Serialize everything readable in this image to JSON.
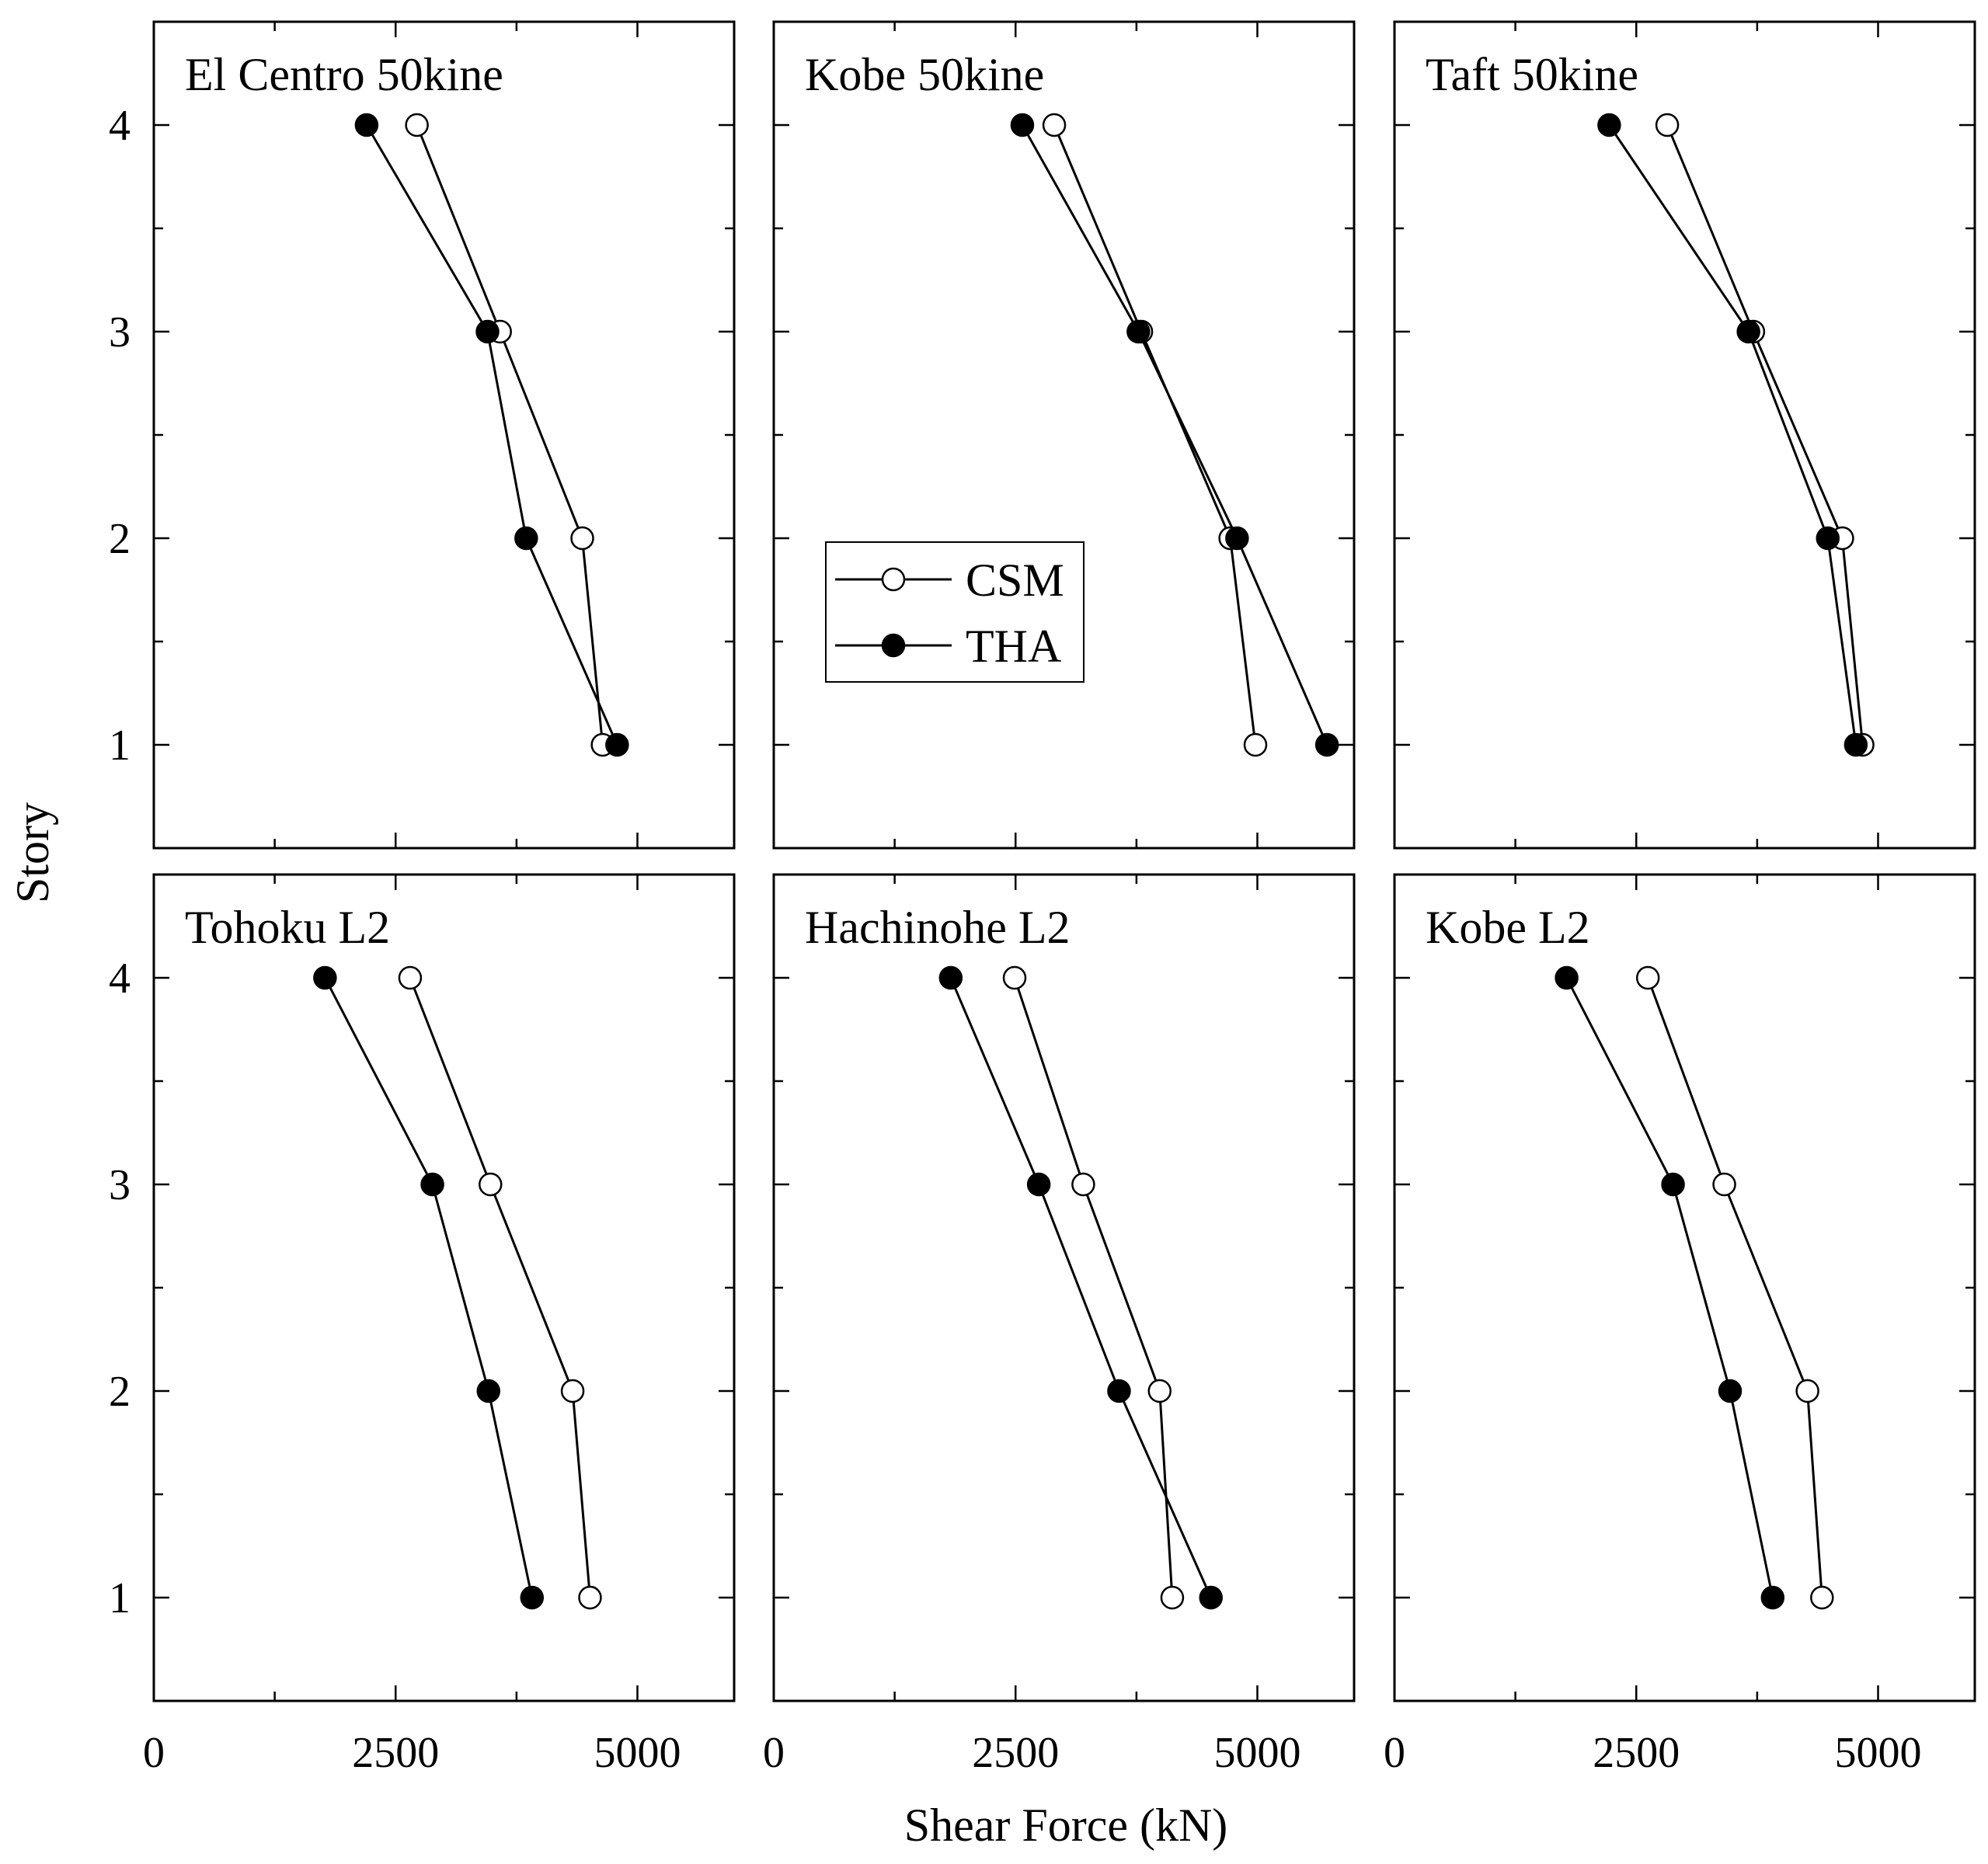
{
  "chart_data": {
    "type": "line",
    "xlabel": "Shear Force (kN)",
    "ylabel": "Story",
    "xlim": [
      0,
      6000
    ],
    "ylim": [
      0.5,
      4.5
    ],
    "x_ticks": [
      0,
      2500,
      5000
    ],
    "y_ticks": [
      1,
      2,
      3,
      4
    ],
    "grid": false,
    "legend": {
      "placement": "inside Kobe 50kine panel, center-left",
      "entries": [
        {
          "name": "CSM",
          "marker": "open-circle"
        },
        {
          "name": "THA",
          "marker": "filled-circle"
        }
      ]
    },
    "layout": "2 rows x 3 columns, shared axes",
    "panels": [
      {
        "title": "El Centro 50kine",
        "series": [
          {
            "name": "CSM",
            "x": [
              4640,
              4430,
              3580,
              2720
            ],
            "y": [
              1,
              2,
              3,
              4
            ]
          },
          {
            "name": "THA",
            "x": [
              4790,
              3850,
              3450,
              2200
            ],
            "y": [
              1,
              2,
              3,
              4
            ]
          }
        ]
      },
      {
        "title": "Kobe 50kine",
        "series": [
          {
            "name": "CSM",
            "x": [
              4980,
              4720,
              3800,
              2900
            ],
            "y": [
              1,
              2,
              3,
              4
            ]
          },
          {
            "name": "THA",
            "x": [
              5720,
              4790,
              3770,
              2570
            ],
            "y": [
              1,
              2,
              3,
              4
            ]
          }
        ]
      },
      {
        "title": "Taft 50kine",
        "series": [
          {
            "name": "CSM",
            "x": [
              4840,
              4630,
              3710,
              2820
            ],
            "y": [
              1,
              2,
              3,
              4
            ]
          },
          {
            "name": "THA",
            "x": [
              4770,
              4480,
              3660,
              2220
            ],
            "y": [
              1,
              2,
              3,
              4
            ]
          }
        ]
      },
      {
        "title": "Tohoku L2",
        "series": [
          {
            "name": "CSM",
            "x": [
              4510,
              4330,
              3480,
              2650
            ],
            "y": [
              1,
              2,
              3,
              4
            ]
          },
          {
            "name": "THA",
            "x": [
              3910,
              3460,
              2880,
              1770
            ],
            "y": [
              1,
              2,
              3,
              4
            ]
          }
        ]
      },
      {
        "title": "Hachinohe L2",
        "series": [
          {
            "name": "CSM",
            "x": [
              4120,
              3990,
              3200,
              2490
            ],
            "y": [
              1,
              2,
              3,
              4
            ]
          },
          {
            "name": "THA",
            "x": [
              4520,
              3570,
              2740,
              1830
            ],
            "y": [
              1,
              2,
              3,
              4
            ]
          }
        ]
      },
      {
        "title": "Kobe L2",
        "series": [
          {
            "name": "CSM",
            "x": [
              4420,
              4270,
              3410,
              2620
            ],
            "y": [
              1,
              2,
              3,
              4
            ]
          },
          {
            "name": "THA",
            "x": [
              3910,
              3470,
              2880,
              1780
            ],
            "y": [
              1,
              2,
              3,
              4
            ]
          }
        ]
      }
    ]
  }
}
